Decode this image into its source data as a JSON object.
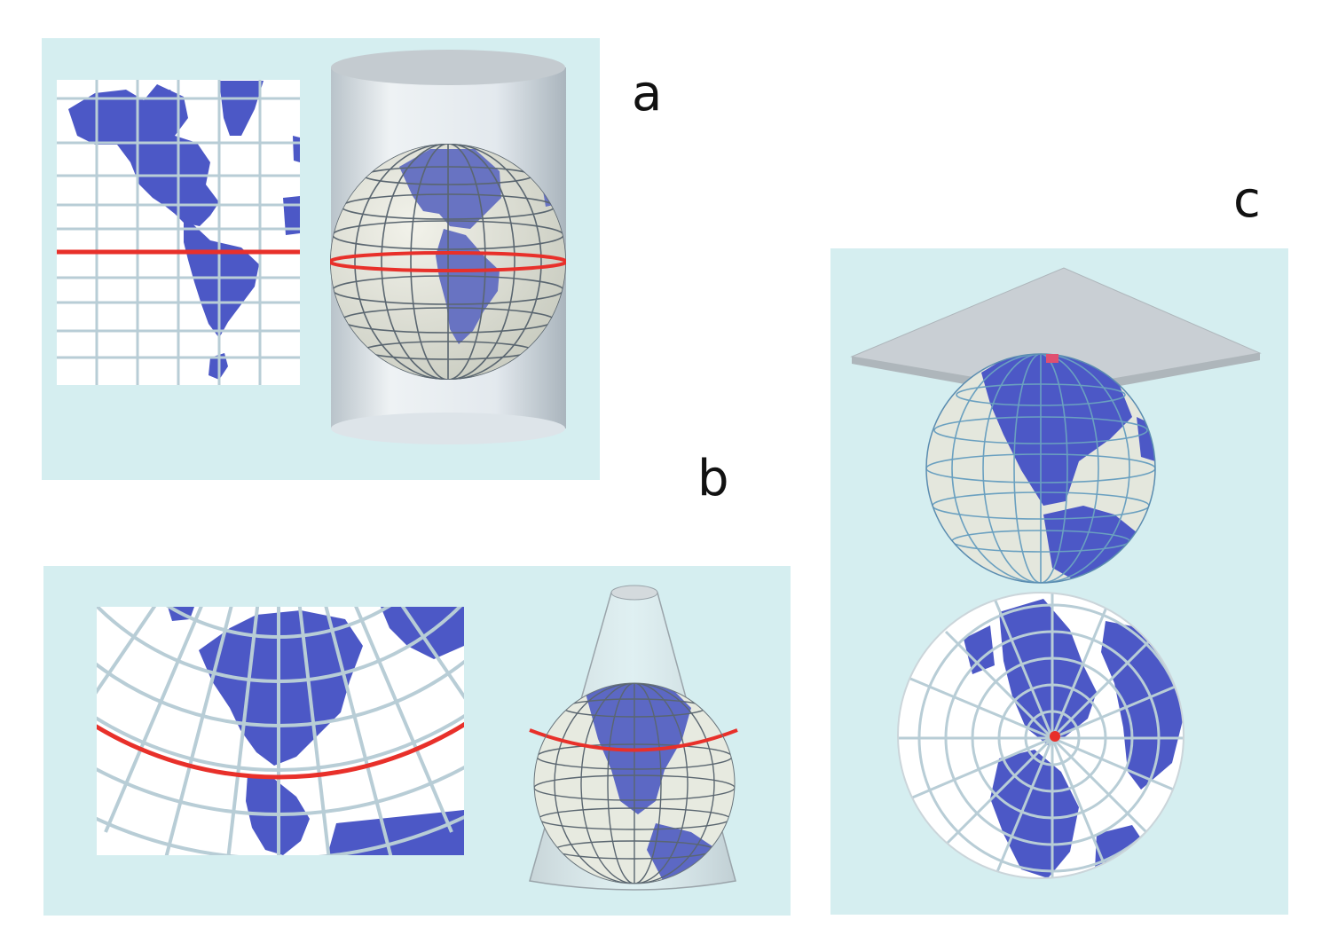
{
  "labels": {
    "a": "a",
    "b": "b",
    "c": "c"
  },
  "colors": {
    "panel_bg": "#d5eef0",
    "land": "#4c58c6",
    "graticule_flat": "#b8cdd6",
    "graticule_globe": "#5a6670",
    "equator_line": "#e8302a",
    "surface": "#c9cfd4",
    "map_bg": "#ffffff"
  },
  "icons": {
    "a": "cylinder-projection-diagram",
    "b": "cone-projection-diagram",
    "c": "plane-projection-diagram"
  }
}
